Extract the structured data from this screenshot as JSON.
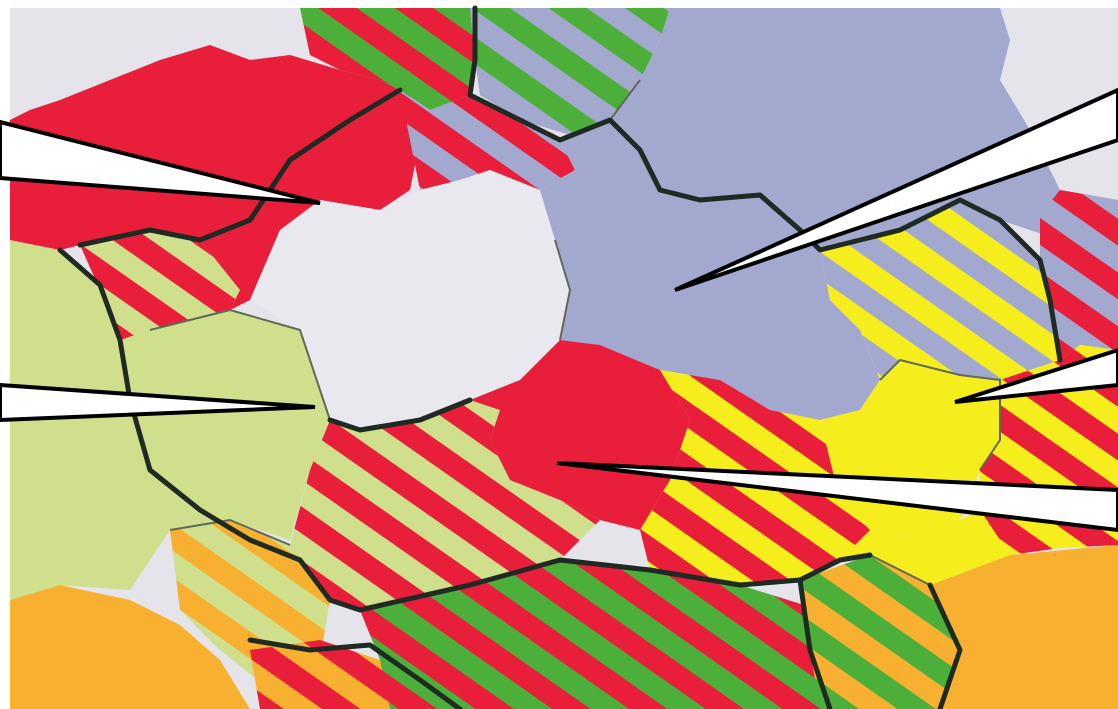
{
  "map": {
    "colors": {
      "background": "#e4e4ea",
      "red": "#e81e3a",
      "light_green": "#cfdf8c",
      "periwinkle": "#a3a8cf",
      "pale_grey": "#e8e8ee",
      "yellow": "#f6ee1c",
      "orange": "#f8b030",
      "green": "#4caf3a",
      "border_dark": "#1e2a22",
      "border_thin": "#5f6b58",
      "callout_fill": "#ffffff",
      "callout_stroke": "#000000"
    },
    "patterns": [
      {
        "id": "stripe-red-green",
        "c1": "#e81e3a",
        "c2": "#4caf3a"
      },
      {
        "id": "stripe-red-lightgreen",
        "c1": "#e81e3a",
        "c2": "#cfdf8c"
      },
      {
        "id": "stripe-red-periwinkle",
        "c1": "#e81e3a",
        "c2": "#a3a8cf"
      },
      {
        "id": "stripe-yellow-periwinkle",
        "c1": "#f6ee1c",
        "c2": "#a3a8cf"
      },
      {
        "id": "stripe-red-yellow",
        "c1": "#e81e3a",
        "c2": "#f6ee1c"
      },
      {
        "id": "stripe-green-periwinkle",
        "c1": "#4caf3a",
        "c2": "#a3a8cf"
      },
      {
        "id": "stripe-orange-lightgreen",
        "c1": "#f8b030",
        "c2": "#cfdf8c"
      },
      {
        "id": "stripe-orange-green",
        "c1": "#f8b030",
        "c2": "#4caf3a"
      },
      {
        "id": "stripe-red-orange",
        "c1": "#e81e3a",
        "c2": "#f8b030"
      }
    ],
    "callouts": [
      {
        "id": "callout-red-northwest",
        "region": "red"
      },
      {
        "id": "callout-periwinkle-northeast",
        "region": "periwinkle"
      },
      {
        "id": "callout-white-west",
        "region": "pale-grey"
      },
      {
        "id": "callout-yellow-east",
        "region": "yellow"
      },
      {
        "id": "callout-red-center",
        "region": "red"
      }
    ]
  }
}
